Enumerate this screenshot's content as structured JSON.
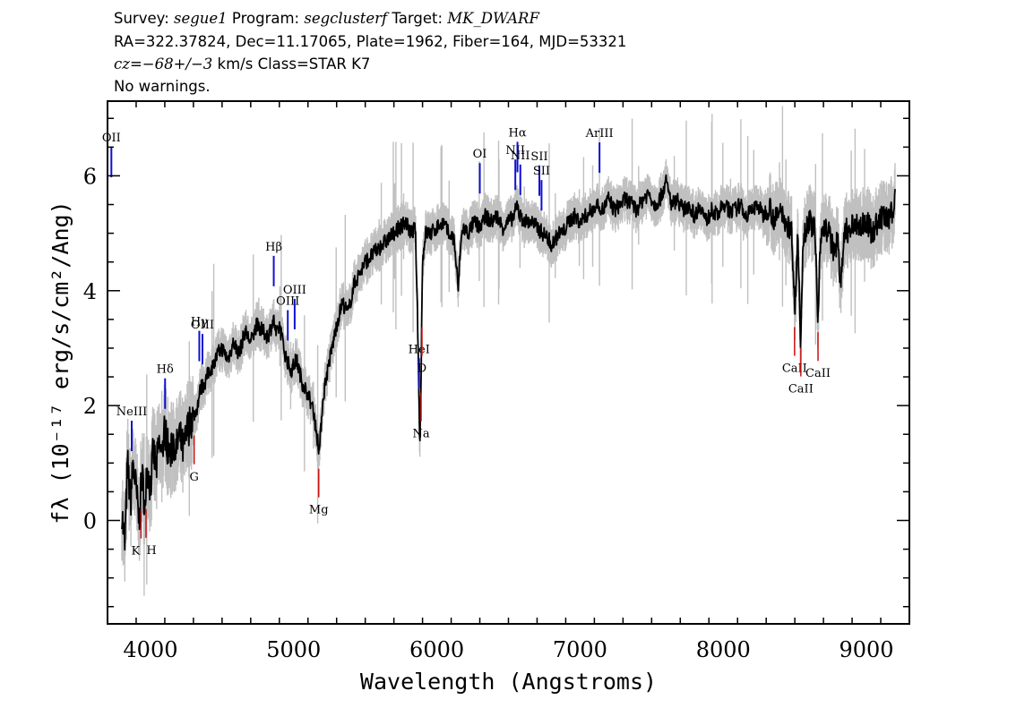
{
  "header": {
    "line1": {
      "survey_label": "Survey: ",
      "survey": "segue1",
      "program_label": " Program: ",
      "program": "segclusterf",
      "target_label": " Target: ",
      "target": "MK_DWARF"
    },
    "line2": "RA=322.37824, Dec=11.17065, Plate=1962, Fiber=164, MJD=53321",
    "line3": {
      "cz_label": "cz",
      "cz_value": "=−68+/−3",
      "rest": " km/s Class=STAR K7"
    },
    "line4": "No warnings."
  },
  "chart_data": {
    "type": "line",
    "xlabel": "Wavelength (Angstroms)",
    "ylabel": "fλ (10⁻¹⁷ erg/s/cm²/Ang)",
    "xlim": [
      3700,
      9300
    ],
    "ylim": [
      -1.8,
      7.3
    ],
    "x_ticks": [
      "4000",
      "5000",
      "6000",
      "7000",
      "8000",
      "9000"
    ],
    "y_ticks": [
      "0",
      "2",
      "4",
      "6"
    ],
    "grid": false,
    "series": [
      {
        "color": "#000000",
        "error_color": "#c0c0c0",
        "x": [
          3800,
          3820,
          3840,
          3860,
          3880,
          3900,
          3920,
          3940,
          3960,
          3980,
          4000,
          4020,
          4040,
          4060,
          4080,
          4100,
          4120,
          4140,
          4160,
          4180,
          4200,
          4230,
          4260,
          4290,
          4320,
          4350,
          4380,
          4410,
          4440,
          4470,
          4500,
          4540,
          4580,
          4620,
          4660,
          4700,
          4740,
          4780,
          4820,
          4860,
          4880,
          4900,
          4940,
          4980,
          5020,
          5060,
          5100,
          5140,
          5160,
          5180,
          5200,
          5220,
          5260,
          5300,
          5340,
          5380,
          5420,
          5460,
          5500,
          5540,
          5580,
          5620,
          5660,
          5700,
          5740,
          5780,
          5820,
          5850,
          5870,
          5880,
          5890,
          5900,
          5920,
          5960,
          6000,
          6040,
          6080,
          6120,
          6150,
          6160,
          6180,
          6220,
          6260,
          6300,
          6340,
          6380,
          6420,
          6460,
          6500,
          6540,
          6560,
          6580,
          6620,
          6660,
          6700,
          6740,
          6780,
          6800,
          6830,
          6850,
          6880,
          6920,
          6960,
          7000,
          7040,
          7080,
          7120,
          7160,
          7200,
          7240,
          7280,
          7320,
          7360,
          7400,
          7440,
          7480,
          7520,
          7560,
          7600,
          7640,
          7680,
          7720,
          7760,
          7800,
          7840,
          7880,
          7920,
          7960,
          8000,
          8040,
          8080,
          8120,
          8160,
          8200,
          8240,
          8280,
          8320,
          8360,
          8400,
          8440,
          8480,
          8500,
          8520,
          8540,
          8560,
          8600,
          8640,
          8660,
          8680,
          8700,
          8740,
          8780,
          8800,
          8820,
          8840,
          8860,
          8880,
          8920,
          8960,
          9000,
          9040,
          9080,
          9120,
          9160,
          9200
        ],
        "y": [
          0.2,
          -0.5,
          1.0,
          0.3,
          1.0,
          0.5,
          0.0,
          0.8,
          0.3,
          0.9,
          0.6,
          1.2,
          0.9,
          1.3,
          1.1,
          1.6,
          1.3,
          1.1,
          1.4,
          1.2,
          1.5,
          1.2,
          1.6,
          1.8,
          1.9,
          2.3,
          2.4,
          2.6,
          2.7,
          2.9,
          3.0,
          2.8,
          3.1,
          2.9,
          3.3,
          3.1,
          3.4,
          3.3,
          3.2,
          3.5,
          3.2,
          3.4,
          2.9,
          2.6,
          2.8,
          2.4,
          2.2,
          1.9,
          1.5,
          1.2,
          2.0,
          2.4,
          2.9,
          3.4,
          3.8,
          3.6,
          4.1,
          4.3,
          4.5,
          4.6,
          4.7,
          4.8,
          4.9,
          5.0,
          5.1,
          5.2,
          5.0,
          5.1,
          3.0,
          1.2,
          2.6,
          4.5,
          5.0,
          5.0,
          5.1,
          5.2,
          5.0,
          4.9,
          4.0,
          4.6,
          5.1,
          5.0,
          5.2,
          5.1,
          5.3,
          5.2,
          5.3,
          5.1,
          5.2,
          5.3,
          5.5,
          5.3,
          5.2,
          5.2,
          5.1,
          5.0,
          4.9,
          4.8,
          4.9,
          5.0,
          5.0,
          5.2,
          5.3,
          5.2,
          5.3,
          5.4,
          5.5,
          5.4,
          5.6,
          5.4,
          5.5,
          5.6,
          5.5,
          5.4,
          5.6,
          5.7,
          5.5,
          5.6,
          5.9,
          5.5,
          5.6,
          5.4,
          5.5,
          5.3,
          5.5,
          5.2,
          5.4,
          5.3,
          5.5,
          5.4,
          5.4,
          5.5,
          5.3,
          5.4,
          5.5,
          5.3,
          5.5,
          5.2,
          5.4,
          5.2,
          5.0,
          3.6,
          5.0,
          3.2,
          5.0,
          5.2,
          5.1,
          3.5,
          5.0,
          5.1,
          5.0,
          4.6,
          5.0,
          4.0,
          4.8,
          5.1,
          5.0,
          5.2,
          5.1,
          5.2,
          5.0,
          5.2,
          5.3,
          5.2,
          5.6
        ]
      }
    ],
    "emission_lines": [
      {
        "label": "OII",
        "x": 3727
      },
      {
        "label": "NeIII",
        "x": 3869
      },
      {
        "label": "Hδ",
        "x": 4102
      },
      {
        "label": "Hγ",
        "x": 4341
      },
      {
        "label": "OIII",
        "x": 4363
      },
      {
        "label": "Hβ",
        "x": 4861
      },
      {
        "label": "OIII",
        "x": 4959
      },
      {
        "label": "OIII",
        "x": 5007
      },
      {
        "label": "HeI",
        "x": 5876
      },
      {
        "label": "OI",
        "x": 6300
      },
      {
        "label": "NII",
        "x": 6548
      },
      {
        "label": "Hα",
        "x": 6563
      },
      {
        "label": "NII",
        "x": 6583
      },
      {
        "label": "SII",
        "x": 6716
      },
      {
        "label": "SII",
        "x": 6731
      },
      {
        "label": "ArIII",
        "x": 7136
      }
    ],
    "absorption_lines": [
      {
        "label": "K",
        "x": 3934
      },
      {
        "label": "H",
        "x": 3969
      },
      {
        "label": "G",
        "x": 4305
      },
      {
        "label": "Mg",
        "x": 5175
      },
      {
        "label": "Na",
        "x": 5890
      },
      {
        "label": "D",
        "x": 5896
      },
      {
        "label": "CaII",
        "x": 8498
      },
      {
        "label": "CaII",
        "x": 8542
      },
      {
        "label": "CaII",
        "x": 8662
      }
    ]
  }
}
